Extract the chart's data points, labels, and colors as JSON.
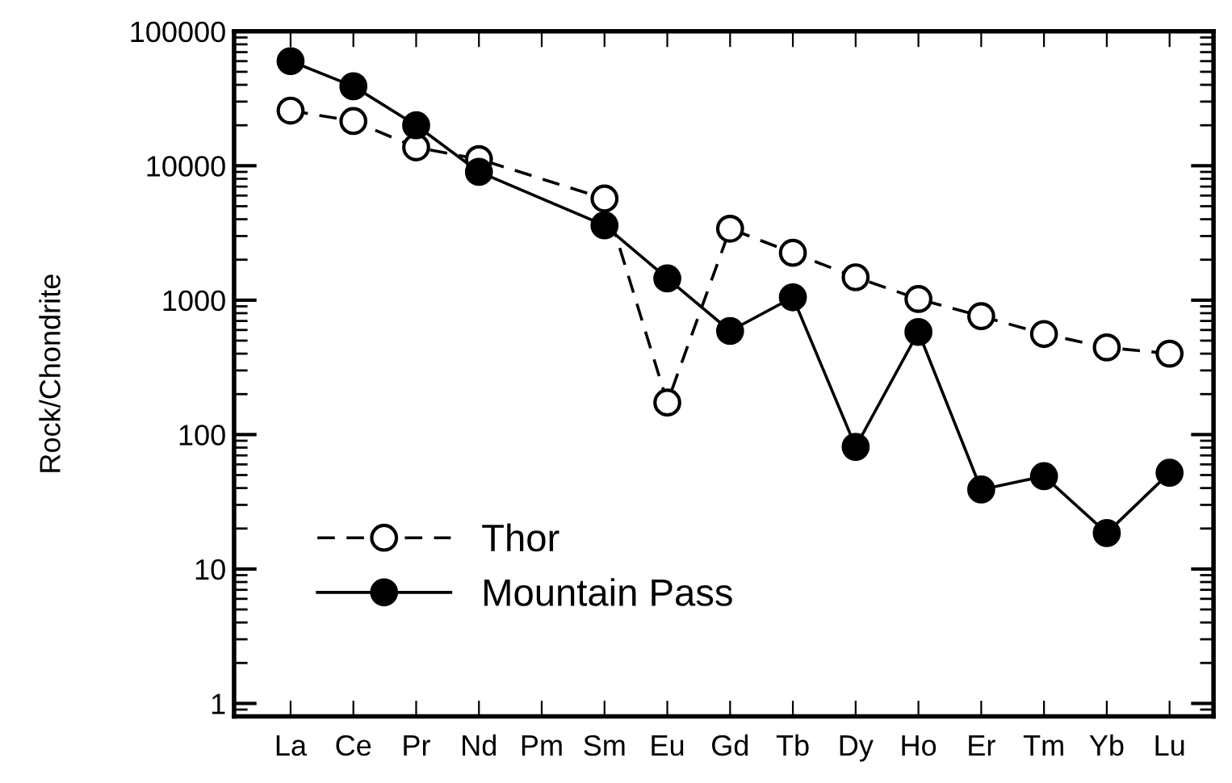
{
  "chart_data": {
    "type": "line",
    "ylabel": "Rock/Chondrite",
    "categories": [
      "La",
      "Ce",
      "Pr",
      "Nd",
      "Pm",
      "Sm",
      "Eu",
      "Gd",
      "Tb",
      "Dy",
      "Ho",
      "Er",
      "Tm",
      "Yb",
      "Lu"
    ],
    "series": [
      {
        "name": "Thor",
        "color": "#000000",
        "line_style": "dashed",
        "values": [
          25700,
          21500,
          13700,
          11200,
          null,
          5700,
          173,
          3400,
          2250,
          1480,
          1020,
          760,
          560,
          445,
          400
        ]
      },
      {
        "name": "Mountain Pass",
        "color": "#000000",
        "line_style": "solid",
        "values": [
          60000,
          39000,
          20000,
          9000,
          null,
          3600,
          1450,
          590,
          1050,
          81,
          580,
          39,
          49,
          18.5,
          52
        ]
      }
    ],
    "log": true,
    "ylim": [
      0.8,
      100000
    ],
    "yticks": [
      1,
      10,
      100,
      1000,
      10000,
      100000
    ],
    "grid": false,
    "legend": "bottom left",
    "marker": "circle"
  }
}
